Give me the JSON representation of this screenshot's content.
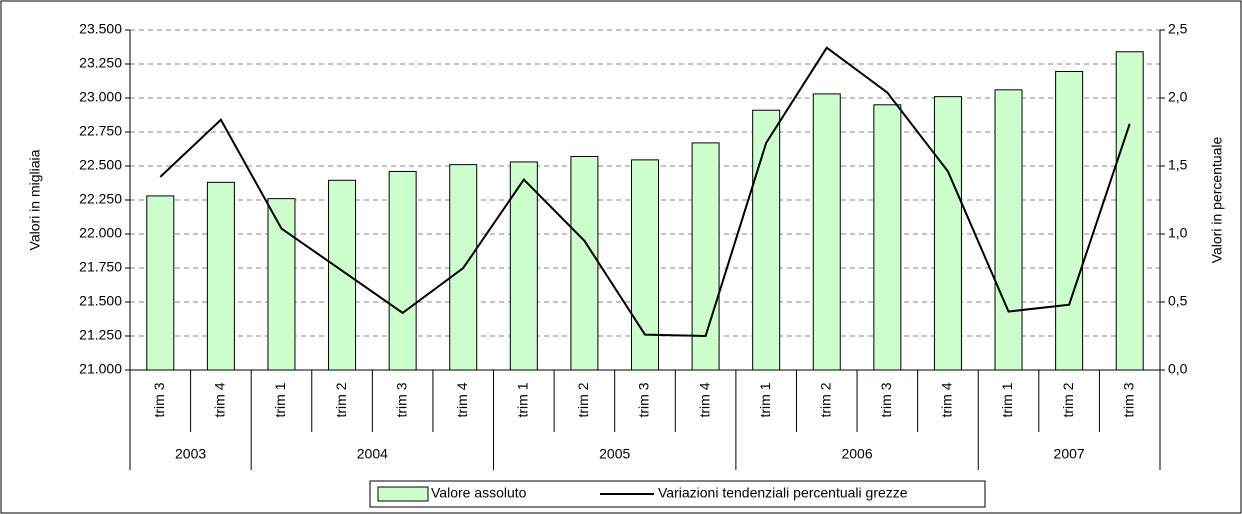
{
  "chart_data": {
    "type": "bar_line",
    "groups": [
      {
        "label": "2003",
        "categories": [
          "trim 3",
          "trim 4"
        ]
      },
      {
        "label": "2004",
        "categories": [
          "trim 1",
          "trim 2",
          "trim 3",
          "trim 4"
        ]
      },
      {
        "label": "2005",
        "categories": [
          "trim 1",
          "trim 2",
          "trim 3",
          "trim 4"
        ]
      },
      {
        "label": "2006",
        "categories": [
          "trim 1",
          "trim 2",
          "trim 3",
          "trim 4"
        ]
      },
      {
        "label": "2007",
        "categories": [
          "trim 1",
          "trim 2",
          "trim 3"
        ]
      }
    ],
    "series": [
      {
        "name": "Valore assoluto",
        "type": "bar",
        "color": "#ccffcc",
        "values": [
          22280,
          22380,
          22260,
          22395,
          22460,
          22510,
          22530,
          22570,
          22545,
          22670,
          22910,
          23030,
          22950,
          23010,
          23060,
          23195,
          23340
        ]
      },
      {
        "name": "Variazioni tendenziali percentuali grezze",
        "type": "line",
        "axis": "y2",
        "color": "#000000",
        "values": [
          1.42,
          1.84,
          1.04,
          0.73,
          0.42,
          0.75,
          1.4,
          0.95,
          0.26,
          0.25,
          1.67,
          2.37,
          2.04,
          1.46,
          0.43,
          0.48,
          1.81
        ]
      }
    ],
    "ylabel": "Valori in migliaia",
    "y2label": "Valori in percentuale",
    "ylim": [
      21000,
      23500
    ],
    "yticks": [
      {
        "value": 21000,
        "label": "21.000"
      },
      {
        "value": 21250,
        "label": "21.250"
      },
      {
        "value": 21500,
        "label": "21.500"
      },
      {
        "value": 21750,
        "label": "21.750"
      },
      {
        "value": 22000,
        "label": "22.000"
      },
      {
        "value": 22250,
        "label": "22.250"
      },
      {
        "value": 22500,
        "label": "22.500"
      },
      {
        "value": 22750,
        "label": "22.750"
      },
      {
        "value": 23000,
        "label": "23.000"
      },
      {
        "value": 23250,
        "label": "23.250"
      },
      {
        "value": 23500,
        "label": "23.500"
      }
    ],
    "y2lim": [
      0,
      2.5
    ],
    "y2ticks": [
      {
        "value": 0,
        "label": "0,0"
      },
      {
        "value": 0.5,
        "label": "0,5"
      },
      {
        "value": 1,
        "label": "1,0"
      },
      {
        "value": 1.5,
        "label": "1,5"
      },
      {
        "value": 2,
        "label": "2,0"
      },
      {
        "value": 2.5,
        "label": "2,5"
      }
    ],
    "grid": true,
    "legend": "bottom"
  }
}
